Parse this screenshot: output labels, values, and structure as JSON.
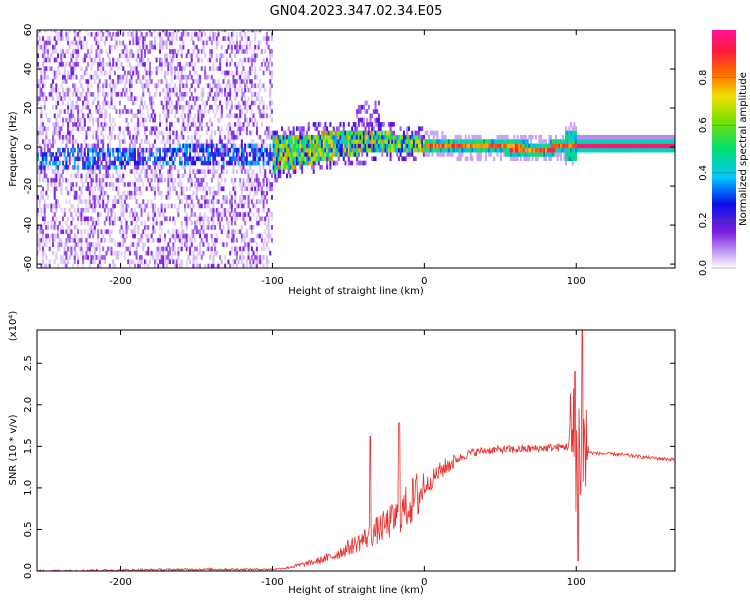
{
  "title": "GN04.2023.347.02.34.E05",
  "chart_data": [
    {
      "type": "heatmap",
      "xlabel": "Height of straight line (km)",
      "ylabel": "Frequency (Hz)",
      "xlim": [
        -255,
        165
      ],
      "ylim": [
        -62,
        60
      ],
      "xticks": [
        -200,
        -100,
        0,
        100
      ],
      "yticks": [
        -60,
        -40,
        -20,
        0,
        20,
        40,
        60
      ],
      "colorbar": {
        "label": "Normalized spectral amplitude",
        "range": [
          0,
          1
        ],
        "ticks": [
          0.0,
          0.2,
          0.4,
          0.6,
          0.8
        ],
        "colormap": [
          "#ffffff",
          "#c9a6f5",
          "#7c1fe0",
          "#0a10e8",
          "#00c8ff",
          "#00e070",
          "#7be000",
          "#f0e000",
          "#ff6a00",
          "#ff1a3a",
          "#ff1493"
        ]
      },
      "features": {
        "noise_region_x": [
          -255,
          -103
        ],
        "band_center_hz": [
          [
            -255,
            -8
          ],
          [
            -150,
            -5
          ],
          [
            -100,
            -5
          ],
          [
            -60,
            0
          ],
          [
            -30,
            2
          ],
          [
            0,
            0
          ],
          [
            80,
            -2
          ],
          [
            97,
            0
          ],
          [
            165,
            0
          ]
        ],
        "strong_band_x": [
          100,
          165
        ]
      }
    },
    {
      "type": "line",
      "xlabel": "Height of straight line (km)",
      "ylabel": "SNR (10 * v/v)",
      "multiplier": "(x10⁴)",
      "xlim": [
        -255,
        165
      ],
      "ylim": [
        0,
        2.9
      ],
      "xticks": [
        -200,
        -100,
        0,
        100
      ],
      "yticks": [
        0.0,
        0.5,
        1.0,
        1.5,
        2.0,
        2.5
      ],
      "color": "#e8312e",
      "series": [
        {
          "x": [
            -255,
            -200,
            -150,
            -120,
            -100,
            -90,
            -80,
            -70,
            -60,
            -50,
            -40,
            -30,
            -20,
            -10,
            0,
            10,
            20,
            30,
            40,
            50,
            60,
            70,
            80,
            90,
            95,
            100,
            105,
            110,
            120,
            130,
            140,
            150,
            165
          ],
          "values": [
            0.0,
            0.01,
            0.02,
            0.02,
            0.02,
            0.04,
            0.08,
            0.12,
            0.18,
            0.28,
            0.38,
            0.5,
            0.62,
            0.8,
            1.0,
            1.2,
            1.33,
            1.42,
            1.45,
            1.46,
            1.46,
            1.47,
            1.48,
            1.49,
            1.5,
            1.5,
            1.45,
            1.42,
            1.41,
            1.4,
            1.38,
            1.36,
            1.34
          ]
        }
      ]
    }
  ]
}
